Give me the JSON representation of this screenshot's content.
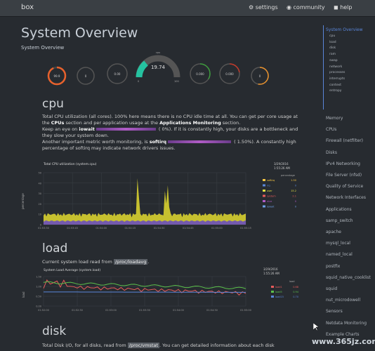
{
  "topbar": {
    "brand": "box",
    "settings": "settings",
    "community": "community",
    "help": "help"
  },
  "page": {
    "title": "System Overview",
    "subtitle": "System Overview"
  },
  "gauges": {
    "main_label": "cpu",
    "main_value": "19.74",
    "main_min": "0",
    "main_max": "100",
    "small": [
      {
        "value": "99.9"
      },
      {
        "value": "0"
      },
      {
        "value": "0.00"
      },
      {
        "value": "0.000"
      },
      {
        "value": "0.000"
      },
      {
        "value": "0"
      }
    ]
  },
  "cpu_section": {
    "heading": "cpu",
    "para1a": "Total CPU utilization (all cores). 100% here means there is no CPU idle time at all. You can get per core usage at the ",
    "para1b": "CPUs",
    "para1c": " section and per application usage at the ",
    "para1d": "Applications Monitoring",
    "para1e": " section.",
    "para2a": "Keep an eye on ",
    "para2b": "iowait",
    "para2c": " (       0%). If it is constantly high, your disks are a bottleneck and they slow your system down.",
    "para3a": "Another important metric worth monitoring, is ",
    "para3b": "softirq",
    "para3c": " (     1.50%). A constantly high percentage of softirq may indicate network drivers issues.",
    "chart_title": "Total CPU utilization (system.cpu)",
    "ylabel": "percentage",
    "date": "3/29/2016",
    "time": "1:55:26 AM",
    "legend_header": "percentage",
    "legend": [
      {
        "name": "softirq",
        "value": "1.50",
        "color": "#f7c644"
      },
      {
        "name": "irq",
        "value": "0",
        "color": "#5a86d9"
      },
      {
        "name": "user",
        "value": "15.2",
        "color": "#e5e342"
      },
      {
        "name": "system",
        "value": "2.1",
        "color": "#e65b5b"
      },
      {
        "name": "nice",
        "value": "0",
        "color": "#b05cc6"
      },
      {
        "name": "iowait",
        "value": "0",
        "color": "#6ea0e5"
      }
    ],
    "x_ticks": [
      "01:53:30",
      "01:53:45",
      "01:54:00",
      "01:54:15",
      "01:54:30",
      "01:54:45",
      "01:55:00",
      "01:55:15"
    ],
    "y_ticks": [
      "0",
      "10",
      "20",
      "30",
      "40",
      "50"
    ]
  },
  "load_section": {
    "heading": "load",
    "para_a": "Current system load read from ",
    "para_code": "/proc/loadavg",
    "para_b": ".",
    "chart_title": "System Load Average (system.load)",
    "ylabel": "load",
    "date": "3/29/2016",
    "time": "1:55:26 AM",
    "legend_header": "load",
    "legend": [
      {
        "name": "load1",
        "value": "0.68",
        "color": "#e65b5b"
      },
      {
        "name": "load5",
        "value": "0.94",
        "color": "#5bc04b"
      },
      {
        "name": "load15",
        "value": "0.70",
        "color": "#5a86d9"
      }
    ],
    "x_ticks": [
      "01:52:00",
      "01:52:30",
      "01:53:00",
      "01:53:30",
      "01:54:00",
      "01:54:30",
      "01:55:00"
    ],
    "y_ticks": [
      "0.00",
      "0.50",
      "1.00",
      "1.50"
    ]
  },
  "disk_section": {
    "heading": "disk",
    "para_a": "Total Disk I/O, for all disks, read from ",
    "para_code": "/proc/vmstat",
    "para_b": ". You can get detailed information about each disk"
  },
  "sidebar": {
    "active": "System Overview",
    "subitems": [
      "cpu",
      "load",
      "disk",
      "ram",
      "swap",
      "network",
      "processes",
      "interrupts",
      "context",
      "entropy"
    ],
    "items": [
      "Memory",
      "CPUs",
      "Firewall (netfilter)",
      "Disks",
      "IPv4 Networking",
      "File Server (nfsd)",
      "Quality of Service",
      "Network Interfaces",
      "Applications",
      "samp_switch",
      "apache",
      "mysql_local",
      "named_local",
      "postfix",
      "squid_native_cooklist",
      "squid",
      "nut_microdowell",
      "Sensors",
      "Netdata Monitoring",
      "Example Charts"
    ]
  },
  "watermark": "www.365jz.com"
}
